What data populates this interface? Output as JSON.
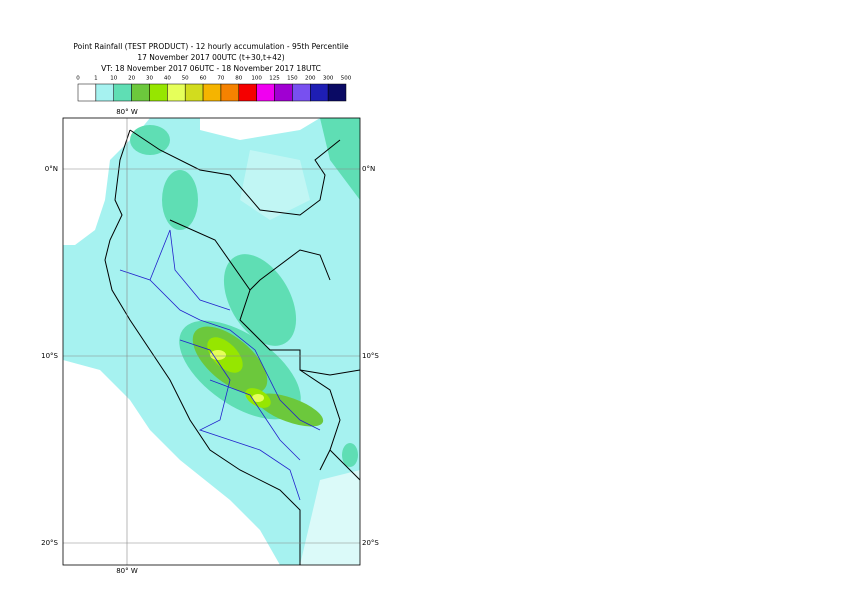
{
  "header": {
    "title": "Point Rainfall (TEST PRODUCT) - 12 hourly accumulation - 95th Percentile",
    "run": "17 November 2017 00UTC (t+30,t+42)",
    "valid": "VT: 18 November 2017 06UTC - 18 November 2017 18UTC"
  },
  "legend": {
    "labels": [
      "0",
      "1",
      "10",
      "20",
      "30",
      "40",
      "50",
      "60",
      "70",
      "80",
      "100",
      "125",
      "150",
      "200",
      "300",
      "500"
    ],
    "colors": [
      "#ffffff",
      "#a6f2f0",
      "#5fdeb4",
      "#6cc83c",
      "#96e600",
      "#e6ff5a",
      "#d2dc1e",
      "#f5b400",
      "#f58200",
      "#f50000",
      "#f000f0",
      "#a000d2",
      "#7850f0",
      "#1e1eb4",
      "#0a0a64"
    ]
  },
  "map": {
    "lon_label": "80° W",
    "lat_labels": [
      "0°N",
      "10°S",
      "20°S"
    ]
  }
}
